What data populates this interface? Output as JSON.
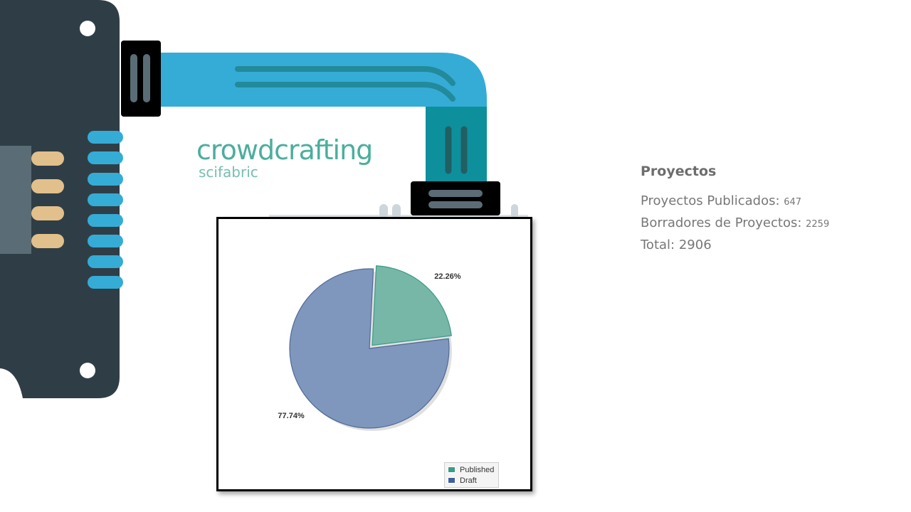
{
  "logo": {
    "main": "crowdcrafting",
    "sub": "scifabric"
  },
  "stats": {
    "heading": "Proyectos",
    "published_label": "Proyectos Publicados:",
    "published_value": "647",
    "draft_label": "Borradores de Proyectos:",
    "draft_value": "2259",
    "total_label": "Total:",
    "total_value": "2906"
  },
  "chart_data": {
    "type": "pie",
    "slices": [
      {
        "name": "Published",
        "value": 22.26,
        "label": "22.26%",
        "color": "#76b7a8",
        "legend_color": "#3a9b86"
      },
      {
        "name": "Draft",
        "value": 77.74,
        "label": "77.74%",
        "color": "#7f97bc",
        "legend_color": "#3f5f9e"
      }
    ],
    "legend": [
      "Published",
      "Draft"
    ],
    "legend_position": "bottom-right"
  },
  "colors": {
    "device_dark": "#2f3e46",
    "cable_blue": "#35acd6",
    "cable_teal": "#0e8f9c",
    "pin_gold": "#e2c08b",
    "brand_green": "#4cae9d"
  }
}
